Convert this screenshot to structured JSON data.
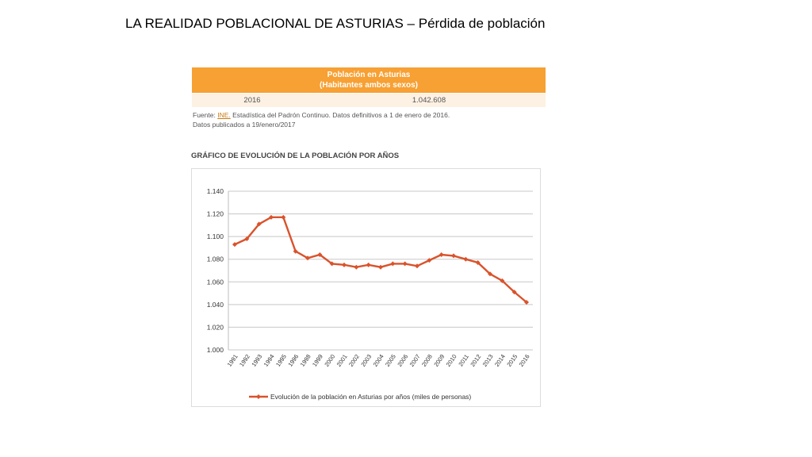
{
  "slide": {
    "title": "LA REALIDAD POBLACIONAL DE ASTURIAS – Pérdida de población"
  },
  "table": {
    "header_line1": "Población en Asturias",
    "header_line2": "(Habitantes ambos sexos)",
    "year": "2016",
    "value": "1.042.608",
    "header_color": "#f7a033"
  },
  "source": {
    "prefix": "Fuente:",
    "link": "INE.",
    "text": "Estadística del Padrón Continuo. Datos definitivos a 1 de enero de 2016.",
    "published": "Datos publicados a 19/enero/2017"
  },
  "chart_heading": "GRÁFICO DE EVOLUCIÓN DE LA POBLACIÓN POR AÑOS",
  "chart_data": {
    "type": "line",
    "x": [
      "1991",
      "1992",
      "1993",
      "1994",
      "1995",
      "1996",
      "1998",
      "1999",
      "2000",
      "2001",
      "2002",
      "2003",
      "2004",
      "2005",
      "2006",
      "2007",
      "2008",
      "2009",
      "2010",
      "2011",
      "2012",
      "2013",
      "2014",
      "2015",
      "2016"
    ],
    "series": [
      {
        "name": "Evolución de la población en Asturias por años (miles de personas)",
        "color": "#d9532c",
        "values": [
          1093,
          1098,
          1111,
          1117,
          1117,
          1087,
          1081,
          1084,
          1076,
          1075,
          1073,
          1075,
          1073,
          1076,
          1076,
          1074,
          1079,
          1084,
          1083,
          1080,
          1077,
          1067,
          1061,
          1051,
          1042
        ]
      }
    ],
    "yticks": [
      "1.140",
      "1.120",
      "1.100",
      "1.080",
      "1.060",
      "1.040",
      "1.020",
      "1.000"
    ],
    "ylim": [
      1000,
      1140
    ],
    "grid": true,
    "legend": "bottom"
  }
}
